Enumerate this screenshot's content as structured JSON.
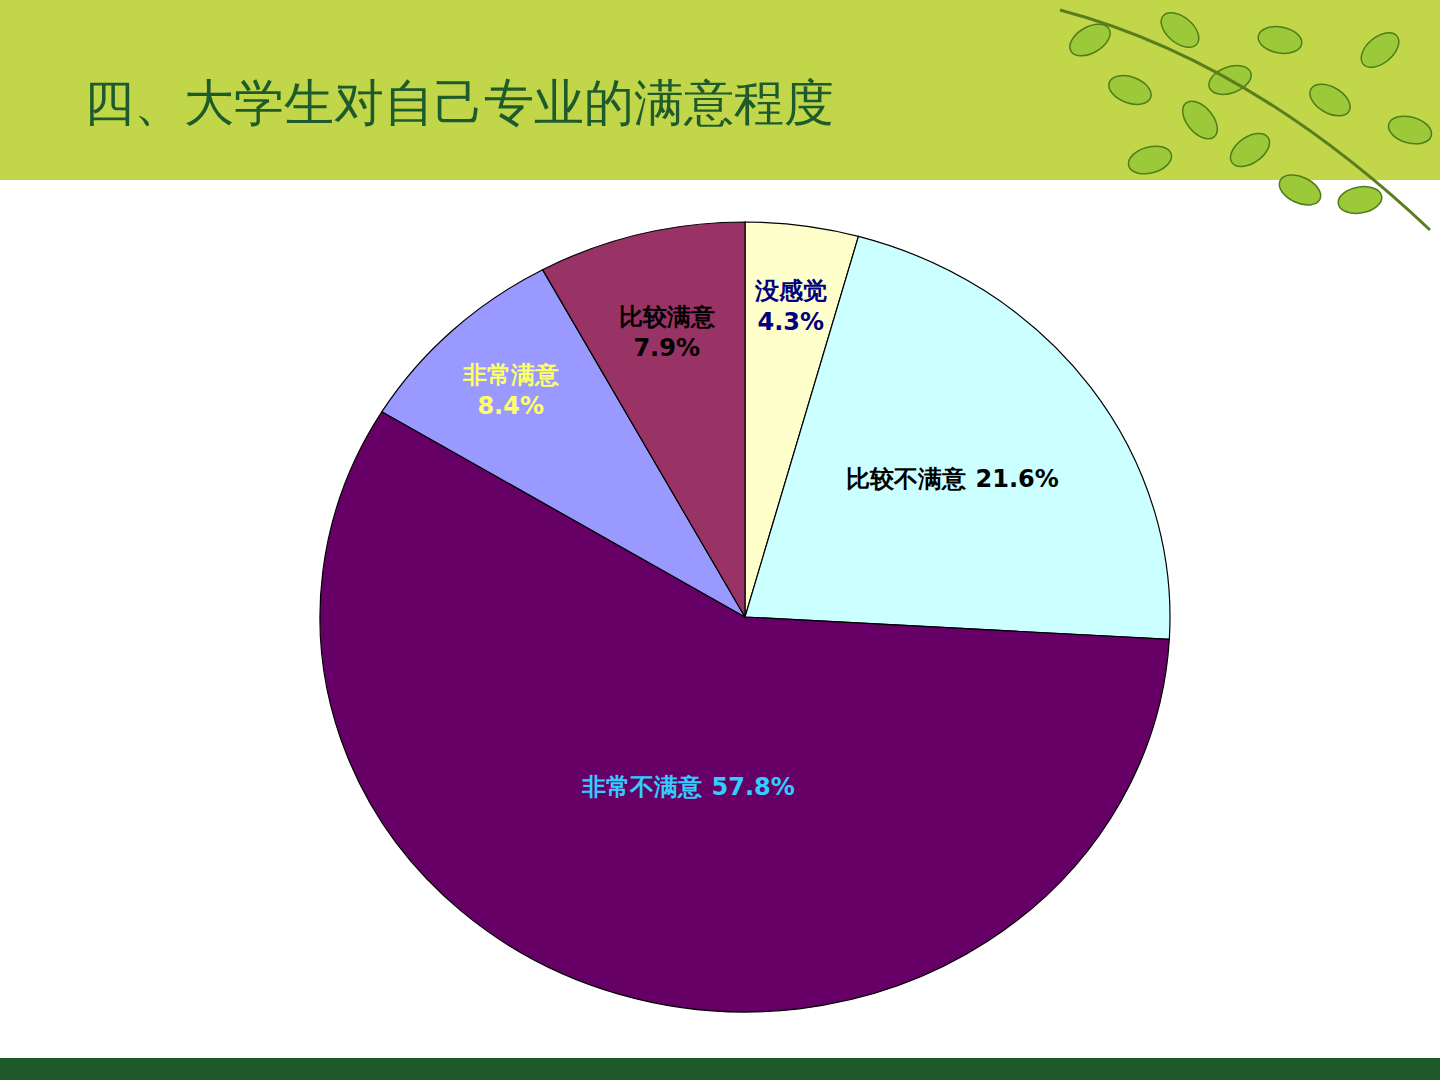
{
  "chart_data": {
    "type": "pie",
    "title": "四、大学生对自己专业的满意程度",
    "categories": [
      "没感觉",
      "比较不满意",
      "非常不满意",
      "非常满意",
      "比较满意"
    ],
    "values": [
      4.3,
      21.6,
      57.8,
      8.4,
      7.9
    ],
    "value_labels": [
      "4.3%",
      "21.6%",
      "57.8%",
      "8.4%",
      "7.9%"
    ],
    "colors": [
      "#ffffcc",
      "#ccffff",
      "#660066",
      "#9999ff",
      "#993366"
    ],
    "data_labels": true
  }
}
